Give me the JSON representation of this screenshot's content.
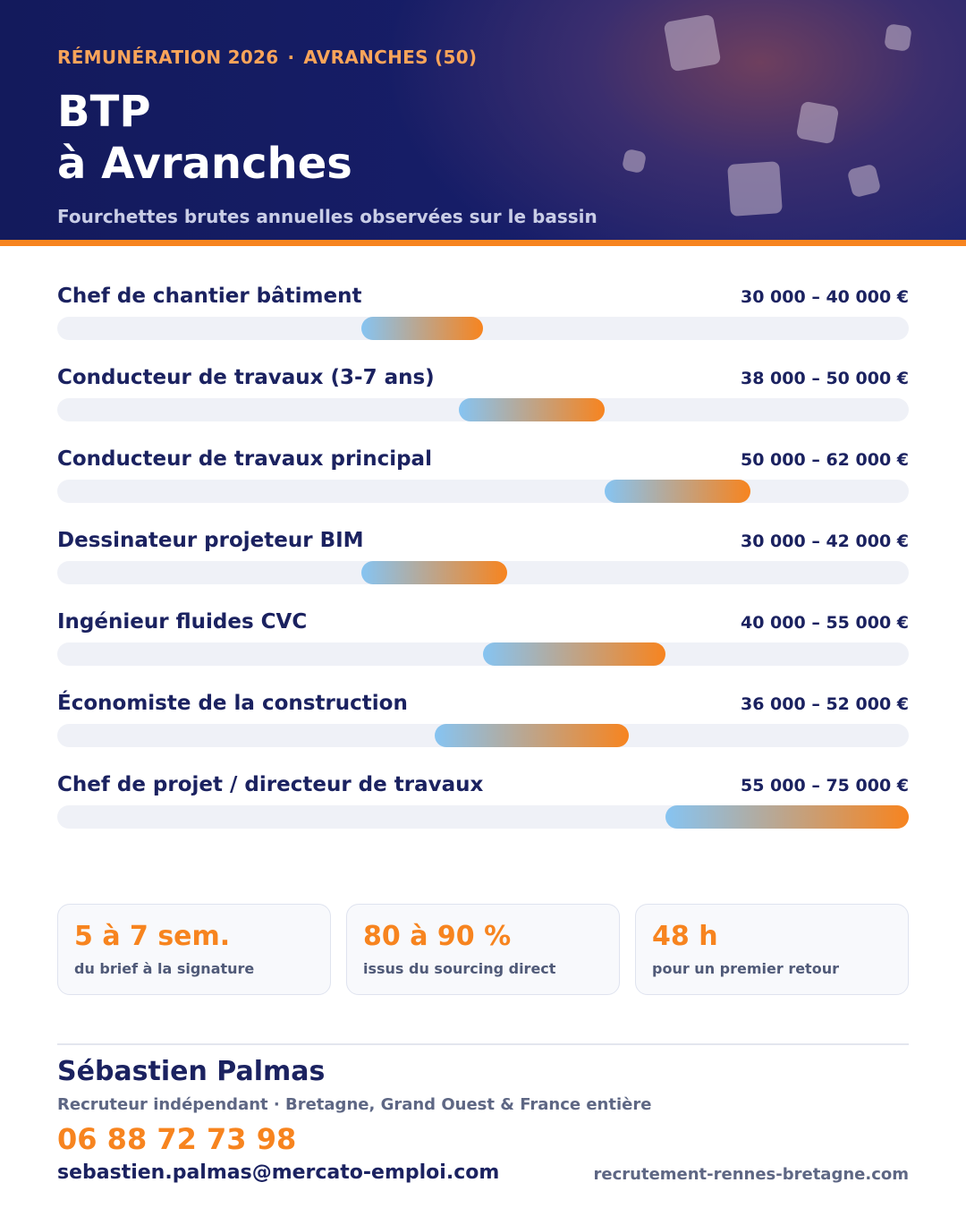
{
  "header": {
    "eyebrow_left": "RÉMUNÉRATION 2026",
    "eyebrow_sep": "·",
    "eyebrow_right": "AVRANCHES (50)",
    "title_line1": "BTP",
    "title_line2": "à Avranches",
    "subtitle": "Fourchettes brutes annuelles observées sur le bassin",
    "accent_color": "#f7841f",
    "background_color": "#171e6a"
  },
  "chart_data": {
    "type": "bar",
    "orientation": "horizontal-range",
    "unit": "€",
    "xlim": [
      0,
      75000
    ],
    "categories": [
      "Chef de chantier bâtiment",
      "Conducteur de travaux (3-7 ans)",
      "Conducteur de travaux principal",
      "Dessinateur projeteur BIM",
      "Ingénieur fluides CVC",
      "Économiste de la construction",
      "Chef de projet / directeur de travaux"
    ],
    "rows": [
      {
        "label": "Chef de chantier bâtiment",
        "min": 30000,
        "max": 40000,
        "range_label": "30 000 – 40 000 €"
      },
      {
        "label": "Conducteur de travaux (3-7 ans)",
        "min": 38000,
        "max": 50000,
        "range_label": "38 000 – 50 000 €"
      },
      {
        "label": "Conducteur de travaux principal",
        "min": 50000,
        "max": 62000,
        "range_label": "50 000 – 62 000 €"
      },
      {
        "label": "Dessinateur projeteur BIM",
        "min": 30000,
        "max": 42000,
        "range_label": "30 000 – 42 000 €"
      },
      {
        "label": "Ingénieur fluides CVC",
        "min": 40000,
        "max": 55000,
        "range_label": "40 000 – 55 000 €"
      },
      {
        "label": "Économiste de la construction",
        "min": 36000,
        "max": 52000,
        "range_label": "36 000 – 52 000 €"
      },
      {
        "label": "Chef de projet / directeur de travaux",
        "min": 55000,
        "max": 75000,
        "range_label": "55 000 – 75 000 €"
      }
    ],
    "bar_gradient": [
      "#86c4f2",
      "#f7841f"
    ],
    "grid": false,
    "legend": "none"
  },
  "stats": [
    {
      "value": "5 à 7 sem.",
      "caption": "du brief à la signature"
    },
    {
      "value": "80 à 90 %",
      "caption": "issus du sourcing direct"
    },
    {
      "value": "48 h",
      "caption": "pour un premier retour"
    }
  ],
  "contact": {
    "name": "Sébastien Palmas",
    "role": "Recruteur indépendant · Bretagne, Grand Ouest & France entière",
    "phone": "06 88 72 73 98",
    "email": "sebastien.palmas@mercato-emploi.com",
    "website": "recrutement-rennes-bretagne.com"
  }
}
